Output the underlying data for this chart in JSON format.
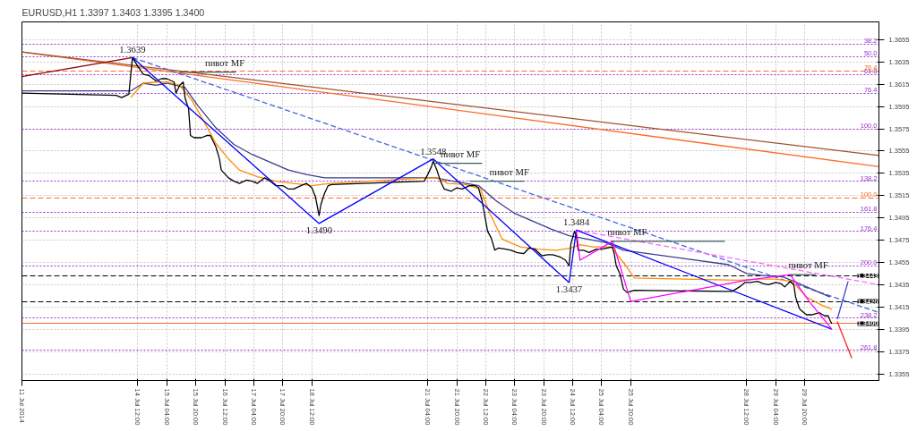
{
  "chart_data": {
    "type": "line",
    "title": "EURUSD,H1  1.3397 1.3403 1.3395 1.3400",
    "xlim": [
      "2014-07-11T20:00",
      "2014-07-31T13:00"
    ],
    "ylim": [
      1.3349,
      1.3671
    ],
    "xticks": [
      {
        "value": "2014-07-11T20:00",
        "label": "11 Jul 2014"
      },
      {
        "value": "2014-07-14T12:00",
        "label": "14 Jul 12:00"
      },
      {
        "value": "2014-07-15T04:00",
        "label": "15 Jul 04:00"
      },
      {
        "value": "2014-07-15T20:00",
        "label": "15 Jul 20:00"
      },
      {
        "value": "2014-07-16T12:00",
        "label": "16 Jul 12:00"
      },
      {
        "value": "2014-07-17T04:00",
        "label": "17 Jul 04:00"
      },
      {
        "value": "2014-07-17T20:00",
        "label": "17 Jul 20:00"
      },
      {
        "value": "2014-07-18T12:00",
        "label": "18 Jul 12:00"
      },
      {
        "value": "2014-07-21T04:00",
        "label": "21 Jul 04:00"
      },
      {
        "value": "2014-07-21T20:00",
        "label": "21 Jul 20:00"
      },
      {
        "value": "2014-07-22T12:00",
        "label": "22 Jul 12:00"
      },
      {
        "value": "2014-07-23T04:00",
        "label": "23 Jul 04:00"
      },
      {
        "value": "2014-07-23T20:00",
        "label": "23 Jul 20:00"
      },
      {
        "value": "2014-07-24T12:00",
        "label": "24 Jul 12:00"
      },
      {
        "value": "2014-07-25T04:00",
        "label": "25 Jul 04:00"
      },
      {
        "value": "2014-07-25T20:00",
        "label": "25 Jul 20:00"
      },
      {
        "value": "2014-07-28T12:00",
        "label": "28 Jul 12:00"
      },
      {
        "value": "2014-07-29T04:00",
        "label": "29 Jul 04:00"
      },
      {
        "value": "2014-07-29T20:00",
        "label": "29 Jul 20:00"
      }
    ],
    "yticks": [
      1.3355,
      1.3375,
      1.3395,
      1.3415,
      1.3435,
      1.3455,
      1.3475,
      1.3495,
      1.3515,
      1.3535,
      1.3555,
      1.3575,
      1.3595,
      1.3615,
      1.3635,
      1.3655
    ],
    "grid": true,
    "series": [
      {
        "color": "#ff6a28",
        "line_style": "solid",
        "x": [
          "2014-07-11T20:00",
          "2014-07-31T13:00"
        ],
        "values": [
          1.3644,
          1.3541
        ]
      },
      {
        "color": "#a0522d",
        "line_style": "solid",
        "x": [
          "2014-07-11T20:00",
          "2014-07-31T13:00"
        ],
        "values": [
          1.3644,
          1.3551
        ]
      },
      {
        "color": "#4169e1",
        "line_style": "dashed",
        "x": [
          "2014-07-14T09:00",
          "2014-07-31T13:00"
        ],
        "values": [
          1.3639,
          1.341
        ]
      },
      {
        "color": "#ff66ff",
        "line_style": "dashed",
        "x": [
          "2014-07-24T14:00",
          "2014-07-31T13:00"
        ],
        "values": [
          1.3484,
          1.3435
        ]
      },
      {
        "color": "#3c3c8c",
        "line_style": "solid",
        "x": [
          "2014-07-11T20:00",
          "2014-07-14T08:00",
          "2014-07-14T15:00",
          "2014-07-14T22:00",
          "2014-07-15T04:00",
          "2014-07-15T14:00",
          "2014-07-15T21:00",
          "2014-07-16T07:00",
          "2014-07-16T17:00",
          "2014-07-17T03:00",
          "2014-07-17T13:00",
          "2014-07-17T23:00",
          "2014-07-18T09:00",
          "2014-07-18T19:00",
          "2014-07-21T08:00",
          "2014-07-21T18:00",
          "2014-07-22T08:00",
          "2014-07-22T18:00",
          "2014-07-23T04:00",
          "2014-07-23T14:00",
          "2014-07-24T00:00",
          "2014-07-24T10:00",
          "2014-07-24T20:00",
          "2014-07-25T06:00",
          "2014-07-25T16:00",
          "2014-07-28T02:00",
          "2014-07-28T12:00",
          "2014-07-28T22:00",
          "2014-07-29T08:00",
          "2014-07-29T14:00",
          "2014-07-30T00:00",
          "2014-07-30T10:00"
        ],
        "values": [
          1.3609,
          1.3609,
          1.3616,
          1.3614,
          1.3616,
          1.3612,
          1.3596,
          1.3576,
          1.3561,
          1.3552,
          1.3545,
          1.3538,
          1.3534,
          1.3531,
          1.3531,
          1.3528,
          1.3524,
          1.351,
          1.3499,
          1.3492,
          1.3485,
          1.3479,
          1.3476,
          1.3473,
          1.3466,
          1.3453,
          1.3445,
          1.3443,
          1.3442,
          1.3438,
          1.3431,
          1.3424
        ]
      },
      {
        "color": "#ff8c00",
        "line_style": "solid",
        "x": [
          "2014-07-14T08:00",
          "2014-07-14T15:00",
          "2014-07-14T22:00",
          "2014-07-15T04:00",
          "2014-07-15T11:00",
          "2014-07-15T18:00",
          "2014-07-16T00:00",
          "2014-07-16T07:00",
          "2014-07-16T14:00",
          "2014-07-16T20:00",
          "2014-07-17T06:00",
          "2014-07-17T16:00",
          "2014-07-18T02:00",
          "2014-07-18T12:00",
          "2014-07-18T22:00",
          "2014-07-21T05:00",
          "2014-07-21T10:00",
          "2014-07-21T15:00",
          "2014-07-22T01:00",
          "2014-07-22T09:00",
          "2014-07-22T14:00",
          "2014-07-22T21:00",
          "2014-07-23T07:00",
          "2014-07-23T17:00",
          "2014-07-24T03:00",
          "2014-07-24T11:00",
          "2014-07-24T16:00",
          "2014-07-24T23:00",
          "2014-07-25T09:00",
          "2014-07-25T16:00",
          "2014-07-25T22:00",
          "2014-07-28T08:00",
          "2014-07-28T18:00",
          "2014-07-29T04:00",
          "2014-07-29T13:00",
          "2014-07-29T21:00",
          "2014-07-30T05:00",
          "2014-07-30T11:00"
        ],
        "values": [
          1.3603,
          1.3616,
          1.3617,
          1.3617,
          1.3614,
          1.36,
          1.3583,
          1.3562,
          1.3548,
          1.3538,
          1.3532,
          1.3528,
          1.3526,
          1.3524,
          1.3526,
          1.3531,
          1.3531,
          1.3526,
          1.3525,
          1.3521,
          1.35,
          1.3476,
          1.3469,
          1.3467,
          1.3466,
          1.3468,
          1.3471,
          1.3469,
          1.3469,
          1.3455,
          1.3441,
          1.3439,
          1.344,
          1.344,
          1.3438,
          1.3424,
          1.3417,
          1.3413
        ]
      },
      {
        "color": "#000000",
        "line_style": "solid",
        "x": [
          "2014-07-11T20:00",
          "2014-07-14T00:00",
          "2014-07-14T03:00",
          "2014-07-14T07:00",
          "2014-07-14T09:00",
          "2014-07-14T12:00",
          "2014-07-14T15:00",
          "2014-07-14T18:00",
          "2014-07-14T22:00",
          "2014-07-15T01:00",
          "2014-07-15T04:00",
          "2014-07-15T08:00",
          "2014-07-15T09:00",
          "2014-07-15T11:00",
          "2014-07-15T13:00",
          "2014-07-15T14:00",
          "2014-07-15T16:00",
          "2014-07-15T17:00",
          "2014-07-15T19:00",
          "2014-07-15T23:00",
          "2014-07-16T02:00",
          "2014-07-16T04:00",
          "2014-07-16T07:00",
          "2014-07-16T09:00",
          "2014-07-16T10:00",
          "2014-07-16T14:00",
          "2014-07-16T17:00",
          "2014-07-16T20:00",
          "2014-07-17T00:00",
          "2014-07-17T03:00",
          "2014-07-17T06:00",
          "2014-07-17T10:00",
          "2014-07-17T13:00",
          "2014-07-17T16:00",
          "2014-07-17T20:00",
          "2014-07-17T23:00",
          "2014-07-18T02:00",
          "2014-07-18T06:00",
          "2014-07-18T09:00",
          "2014-07-18T12:00",
          "2014-07-18T14:00",
          "2014-07-18T16:00",
          "2014-07-18T17:00",
          "2014-07-18T19:00",
          "2014-07-18T21:00",
          "2014-07-18T23:00",
          "2014-07-21T02:00",
          "2014-07-21T04:00",
          "2014-07-21T06:00",
          "2014-07-21T07:00",
          "2014-07-21T09:00",
          "2014-07-21T11:00",
          "2014-07-21T13:00",
          "2014-07-21T17:00",
          "2014-07-21T20:00",
          "2014-07-21T23:00",
          "2014-07-22T03:00",
          "2014-07-22T06:00",
          "2014-07-22T08:00",
          "2014-07-22T10:00",
          "2014-07-22T12:00",
          "2014-07-22T13:00",
          "2014-07-22T15:00",
          "2014-07-22T17:00",
          "2014-07-22T19:00",
          "2014-07-22T23:00",
          "2014-07-23T02:00",
          "2014-07-23T05:00",
          "2014-07-23T09:00",
          "2014-07-23T12:00",
          "2014-07-23T15:00",
          "2014-07-23T19:00",
          "2014-07-23T22:00",
          "2014-07-24T01:00",
          "2014-07-24T05:00",
          "2014-07-24T08:00",
          "2014-07-24T10:00",
          "2014-07-24T11:00",
          "2014-07-24T13:00",
          "2014-07-24T14:00",
          "2014-07-24T15:00",
          "2014-07-24T18:00",
          "2014-07-24T21:00",
          "2014-07-25T01:00",
          "2014-07-25T04:00",
          "2014-07-25T07:00",
          "2014-07-25T10:00",
          "2014-07-25T11:00",
          "2014-07-25T12:00",
          "2014-07-25T14:00",
          "2014-07-25T16:00",
          "2014-07-25T18:00",
          "2014-07-25T22:00",
          "2014-07-28T01:00",
          "2014-07-28T04:00",
          "2014-07-28T08:00",
          "2014-07-28T11:00",
          "2014-07-28T14:00",
          "2014-07-28T18:00",
          "2014-07-28T21:00",
          "2014-07-29T00:00",
          "2014-07-29T04:00",
          "2014-07-29T07:00",
          "2014-07-29T09:00",
          "2014-07-29T12:00",
          "2014-07-29T14:00",
          "2014-07-29T15:00",
          "2014-07-29T17:00",
          "2014-07-29T18:00",
          "2014-07-29T21:00",
          "2014-07-30T00:00",
          "2014-07-30T04:00",
          "2014-07-30T07:00",
          "2014-07-30T09:00",
          "2014-07-30T10:00",
          "2014-07-30T11:00"
        ],
        "values": [
          1.3607,
          1.3605,
          1.3603,
          1.3606,
          1.3639,
          1.3631,
          1.3624,
          1.3623,
          1.3618,
          1.362,
          1.362,
          1.3617,
          1.3607,
          1.3614,
          1.3617,
          1.3603,
          1.3593,
          1.3569,
          1.3567,
          1.3567,
          1.3569,
          1.3569,
          1.3559,
          1.3548,
          1.3538,
          1.3531,
          1.3528,
          1.3526,
          1.3529,
          1.3528,
          1.3526,
          1.3531,
          1.3528,
          1.3524,
          1.3524,
          1.3521,
          1.3521,
          1.3524,
          1.3526,
          1.3522,
          1.3514,
          1.3497,
          1.3507,
          1.3517,
          1.3524,
          1.3525,
          1.3528,
          1.3534,
          1.3541,
          1.3546,
          1.3538,
          1.3528,
          1.3521,
          1.3519,
          1.3522,
          1.3521,
          1.3524,
          1.3524,
          1.3522,
          1.351,
          1.3492,
          1.3483,
          1.3477,
          1.3466,
          1.3468,
          1.3467,
          1.3466,
          1.3464,
          1.3463,
          1.3468,
          1.3467,
          1.3461,
          1.3462,
          1.3462,
          1.346,
          1.3457,
          1.3452,
          1.3472,
          1.3483,
          1.3479,
          1.3466,
          1.3466,
          1.3464,
          1.3467,
          1.3467,
          1.3468,
          1.3469,
          1.3462,
          1.3452,
          1.3445,
          1.3431,
          1.3428,
          1.343,
          1.3429,
          1.3429,
          1.3433,
          1.3437,
          1.3437,
          1.3438,
          1.3436,
          1.3435,
          1.3437,
          1.3436,
          1.3433,
          1.3438,
          1.3435,
          1.3424,
          1.3414,
          1.3412,
          1.3408,
          1.3408,
          1.341,
          1.3407,
          1.3407,
          1.3403,
          1.34
        ]
      },
      {
        "color": "#8b0000",
        "line_style": "solid",
        "x": [
          "2014-07-11T20:00",
          "2014-07-14T09:00"
        ],
        "values": [
          1.3622,
          1.3639
        ]
      },
      {
        "color": "#0000ff",
        "line_style": "solid",
        "x": [
          "2014-07-14T09:00",
          "2014-07-18T16:00",
          "2014-07-21T07:00",
          "2014-07-24T10:00",
          "2014-07-24T14:00",
          "2014-07-30T11:00"
        ],
        "values": [
          1.3639,
          1.349,
          1.3548,
          1.3437,
          1.3484,
          1.3395
        ]
      },
      {
        "color": "#ff00ff",
        "line_style": "solid",
        "x": [
          "2014-07-24T14:00",
          "2014-07-24T16:00",
          "2014-07-25T10:00",
          "2014-07-25T20:00",
          "2014-07-28T12:00",
          "2014-07-29T12:00",
          "2014-07-29T23:00",
          "2014-07-30T11:00"
        ],
        "values": [
          1.3484,
          1.3457,
          1.3474,
          1.342,
          1.3439,
          1.3444,
          1.3419,
          1.3395
        ]
      },
      {
        "color": "#3c5a5a",
        "line_style": "solid",
        "x": [
          "2014-07-15T11:00",
          "2014-07-16T18:00"
        ],
        "values": [
          1.3626,
          1.3626
        ]
      },
      {
        "color": "#3c5a5a",
        "line_style": "solid",
        "x": [
          "2014-07-21T07:00",
          "2014-07-22T10:00"
        ],
        "values": [
          1.3544,
          1.3544
        ]
      },
      {
        "color": "#3c5a5a",
        "line_style": "solid",
        "x": [
          "2014-07-22T03:00",
          "2014-07-23T09:00"
        ],
        "values": [
          1.3528,
          1.3528
        ]
      },
      {
        "color": "#3c5a5a",
        "line_style": "solid",
        "x": [
          "2014-07-25T09:00",
          "2014-07-28T00:00"
        ],
        "values": [
          1.3474,
          1.3474
        ]
      },
      {
        "color": "#3c5a5a",
        "line_style": "solid",
        "x": [
          "2014-07-29T12:00",
          "2014-07-30T02:00"
        ],
        "values": [
          1.3444,
          1.3444
        ]
      },
      {
        "color": "#4040d0",
        "line_style": "solid",
        "x": [
          "2014-07-30T14:00",
          "2014-07-30T20:00"
        ],
        "values": [
          1.3404,
          1.3438
        ]
      },
      {
        "color": "#ff2020",
        "line_style": "solid",
        "x": [
          "2014-07-30T14:00",
          "2014-07-30T22:00"
        ],
        "values": [
          1.3402,
          1.3369
        ]
      }
    ],
    "ref_lines": [
      {
        "axis": "y",
        "value": 1.3651,
        "color": "#9932cc",
        "line_style": "dotted"
      },
      {
        "axis": "y",
        "value": 1.364,
        "color": "#9932cc",
        "line_style": "dotted"
      },
      {
        "axis": "y",
        "value": 1.3627,
        "color": "#ff6a28",
        "line_style": "dashed"
      },
      {
        "axis": "y",
        "value": 1.3624,
        "color": "#9932cc",
        "line_style": "dotted"
      },
      {
        "axis": "y",
        "value": 1.3607,
        "color": "#9932cc",
        "line_style": "dotted"
      },
      {
        "axis": "y",
        "value": 1.3575,
        "color": "#9932cc",
        "line_style": "dotted"
      },
      {
        "axis": "y",
        "value": 1.3528,
        "color": "#9932cc",
        "line_style": "dotted"
      },
      {
        "axis": "y",
        "value": 1.3513,
        "color": "#ff6a28",
        "line_style": "dashed"
      },
      {
        "axis": "y",
        "value": 1.35,
        "color": "#9932cc",
        "line_style": "dotted"
      },
      {
        "axis": "y",
        "value": 1.3483,
        "color": "#9932cc",
        "line_style": "dotted"
      },
      {
        "axis": "y",
        "value": 1.3452,
        "color": "#9932cc",
        "line_style": "dotted"
      },
      {
        "axis": "y",
        "value": 1.3443,
        "label": "1.3443",
        "color": "#000000",
        "line_style": "dashed"
      },
      {
        "axis": "y",
        "value": 1.342,
        "label": "1.3420",
        "color": "#000000",
        "line_style": "dashed"
      },
      {
        "axis": "y",
        "value": 1.3405,
        "color": "#9932cc",
        "line_style": "dotted"
      },
      {
        "axis": "y",
        "value": 1.34,
        "label": "1.3400",
        "color": "#ff6a28",
        "line_style": "solid"
      },
      {
        "axis": "y",
        "value": 1.3376,
        "color": "#9932cc",
        "line_style": "dotted"
      }
    ],
    "annotations": [
      "38.2",
      "50.0",
      "76.4",
      "61.8",
      "76.4",
      "100.0",
      "138.2",
      "100.0",
      "161.8",
      "176.4",
      "200.0",
      "238.2",
      "261.8",
      {
        "text": "1.3639",
        "x": "2014-07-14T09:00",
        "y": 1.3639
      },
      {
        "text": "1.3490",
        "x": "2014-07-18T16:00",
        "y": 1.349
      },
      {
        "text": "1.3548",
        "x": "2014-07-21T07:00",
        "y": 1.3548
      },
      {
        "text": "1.3437",
        "x": "2014-07-24T10:00",
        "y": 1.3437
      },
      {
        "text": "1.3484",
        "x": "2014-07-24T14:00",
        "y": 1.3484
      },
      {
        "text": "пивот MF",
        "x": "2014-07-16T12:00",
        "y": 1.3626
      },
      {
        "text": "пивот MF",
        "x": "2014-07-21T22:00",
        "y": 1.3544
      },
      {
        "text": "пивот MF",
        "x": "2014-07-23T01:00",
        "y": 1.3528
      },
      {
        "text": "пивот MF",
        "x": "2014-07-25T18:00",
        "y": 1.3474
      },
      {
        "text": "пивот MF",
        "x": "2014-07-29T22:00",
        "y": 1.3444
      }
    ]
  }
}
